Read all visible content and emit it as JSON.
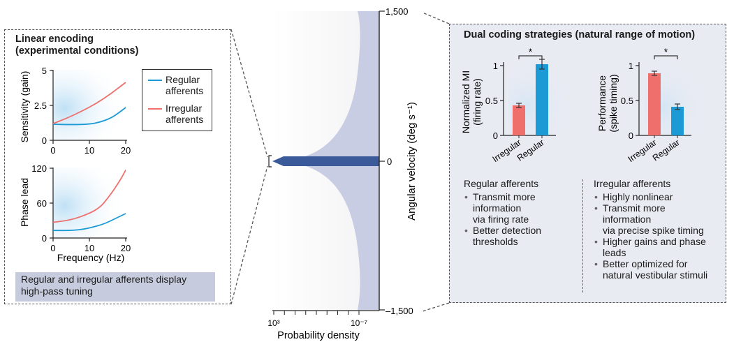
{
  "left_panel": {
    "title_line1": "Linear encoding",
    "title_line2": "(experimental conditions)",
    "top_chart": {
      "ylabel": "Sensitivity (gain)",
      "yticks": [
        "5",
        "2.5",
        "0"
      ],
      "xticks": [
        "0",
        "10",
        "20"
      ]
    },
    "bottom_chart": {
      "ylabel": "Phase lead",
      "yticks": [
        "120",
        "60",
        "0"
      ],
      "xticks": [
        "0",
        "10",
        "20"
      ],
      "xlabel": "Frequency (Hz)"
    },
    "legend": {
      "regular_line1": "Regular",
      "regular_line2": "afferents",
      "irregular_line1": "Irregular",
      "irregular_line2": "afferents"
    },
    "caption_line1": "Regular and irregular afferents display",
    "caption_line2": "high-pass tuning"
  },
  "center": {
    "ytick_top": "1,500",
    "ytick_mid": "0",
    "ytick_bottom": "–1,500",
    "ylabel": "Angular velocity (deg s⁻¹)",
    "xtick_left": "10³",
    "xtick_right": "10⁻⁷",
    "xlabel": "Probability density"
  },
  "right_panel": {
    "title": "Dual coding strategies (natural range of motion)",
    "significance": "*",
    "left_chart": {
      "ylabel_line1": "Normalized MI",
      "ylabel_line2": "(firing rate)",
      "yticks": [
        "1",
        "0.5",
        "0"
      ],
      "categories": [
        "Irregular",
        "Regular"
      ]
    },
    "right_chart": {
      "ylabel_line1": "Performance",
      "ylabel_line2": "(spike timing)",
      "yticks": [
        "1",
        "0.5",
        "0"
      ],
      "categories": [
        "Irregular",
        "Regular"
      ]
    },
    "regular_heading": "Regular afferents",
    "regular_bullets": [
      [
        "Transmit more",
        "information",
        "via firing rate"
      ],
      [
        "Better detection",
        "thresholds"
      ]
    ],
    "irregular_heading": "Irregular afferents",
    "irregular_bullets": [
      [
        "Highly nonlinear"
      ],
      [
        "Transmit more",
        "information",
        "via precise spike timing"
      ],
      [
        "Higher gains and phase",
        "leads"
      ],
      [
        "Better optimized for",
        "natural vestibular stimuli"
      ]
    ]
  },
  "colors": {
    "regular": "#1b9ad6",
    "irregular": "#ef6f6c",
    "distribution": "#c9cde3",
    "band": "#3b5a9a"
  },
  "chart_data": [
    {
      "type": "line",
      "title": "",
      "xlabel": "Frequency (Hz)",
      "ylabel": "Sensitivity (gain)",
      "xlim": [
        0,
        20
      ],
      "ylim": [
        0,
        5
      ],
      "series": [
        {
          "name": "Regular afferents",
          "x": [
            0,
            5,
            10,
            13,
            16,
            18,
            20
          ],
          "values": [
            1.15,
            1.12,
            1.15,
            1.3,
            1.6,
            1.95,
            2.35
          ]
        },
        {
          "name": "Irregular afferents",
          "x": [
            0,
            4,
            8,
            12,
            16,
            20
          ],
          "values": [
            1.2,
            1.6,
            2.1,
            2.65,
            3.35,
            4.15
          ]
        }
      ]
    },
    {
      "type": "line",
      "title": "",
      "xlabel": "Frequency (Hz)",
      "ylabel": "Phase lead",
      "xlim": [
        0,
        20
      ],
      "ylim": [
        0,
        120
      ],
      "series": [
        {
          "name": "Regular afferents",
          "x": [
            0,
            6,
            10,
            14,
            17,
            20
          ],
          "values": [
            13,
            13,
            17,
            24,
            33,
            42
          ]
        },
        {
          "name": "Irregular afferents",
          "x": [
            0,
            5,
            10,
            13,
            15,
            17,
            19,
            20
          ],
          "values": [
            27,
            31,
            42,
            53,
            68,
            85,
            105,
            117
          ]
        }
      ]
    },
    {
      "type": "bar",
      "title": "",
      "ylabel": "Normalized MI (firing rate)",
      "ylim": [
        0,
        1.1
      ],
      "categories": [
        "Irregular",
        "Regular"
      ],
      "values": [
        0.43,
        1.02
      ],
      "errors": [
        0.03,
        0.07
      ]
    },
    {
      "type": "bar",
      "title": "",
      "ylabel": "Performance (spike timing)",
      "ylim": [
        0,
        1.1
      ],
      "categories": [
        "Irregular",
        "Regular"
      ],
      "values": [
        0.89,
        0.41
      ],
      "errors": [
        0.03,
        0.04
      ]
    }
  ]
}
